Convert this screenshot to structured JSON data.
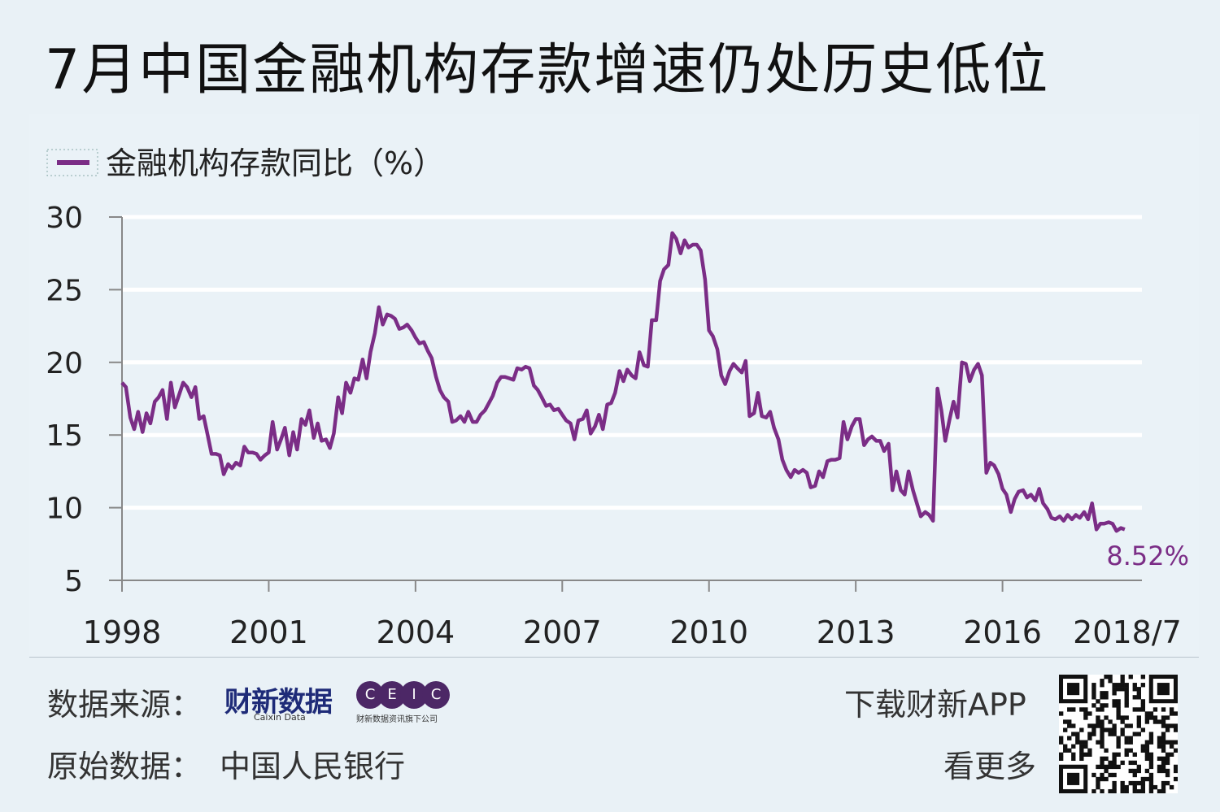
{
  "title": "7月中国金融机构存款增速仍处历史低位",
  "footer": {
    "source_label": "数据来源：",
    "source_logo_caixin": "财新数据",
    "source_logo_caixin_en": "Caixin Data",
    "source_logo_ceic": [
      "C",
      "E",
      "I",
      "C"
    ],
    "source_logo_ceic_sub": "财新数据资讯旗下公司",
    "original_label": "原始数据：",
    "original_value": "中国人民银行",
    "app_line1": "下载财新APP",
    "app_line2": "看更多",
    "qr_icon": "qr-code-icon"
  },
  "colors": {
    "background": "#e9f1f6",
    "series": "#7b2d86",
    "grid": "#ffffff",
    "axis": "#888888"
  },
  "chart_data": {
    "type": "line",
    "title": "",
    "xlabel": "",
    "ylabel": "",
    "ylim": [
      5,
      30
    ],
    "xlim": [
      1998,
      2018.85
    ],
    "yticks": [
      30,
      25,
      20,
      15,
      10,
      5
    ],
    "xticks": [
      {
        "label": "1998",
        "x": 1998
      },
      {
        "label": "2001",
        "x": 2001
      },
      {
        "label": "2004",
        "x": 2004
      },
      {
        "label": "2007",
        "x": 2007
      },
      {
        "label": "2010",
        "x": 2010
      },
      {
        "label": "2013",
        "x": 2013
      },
      {
        "label": "2016",
        "x": 2016
      },
      {
        "label": "2018/7",
        "x": 2018.55
      }
    ],
    "grid": true,
    "legend": "top-left",
    "end_label": "8.52%",
    "series": [
      {
        "name": "金融机构存款同比（%）",
        "color": "#7b2d86",
        "points": [
          [
            1998.0,
            18.6
          ],
          [
            1998.08,
            18.3
          ],
          [
            1998.17,
            16.2
          ],
          [
            1998.25,
            15.4
          ],
          [
            1998.33,
            16.6
          ],
          [
            1998.42,
            15.2
          ],
          [
            1998.5,
            16.5
          ],
          [
            1998.58,
            15.8
          ],
          [
            1998.67,
            17.3
          ],
          [
            1998.75,
            17.6
          ],
          [
            1998.83,
            18.1
          ],
          [
            1998.92,
            16.1
          ],
          [
            1999.0,
            18.6
          ],
          [
            1999.08,
            16.9
          ],
          [
            1999.17,
            17.8
          ],
          [
            1999.25,
            18.6
          ],
          [
            1999.33,
            18.3
          ],
          [
            1999.42,
            17.6
          ],
          [
            1999.5,
            18.3
          ],
          [
            1999.58,
            16.1
          ],
          [
            1999.67,
            16.3
          ],
          [
            1999.75,
            15.0
          ],
          [
            1999.83,
            13.7
          ],
          [
            1999.92,
            13.7
          ],
          [
            2000.0,
            13.6
          ],
          [
            2000.08,
            12.3
          ],
          [
            2000.17,
            13.0
          ],
          [
            2000.25,
            12.7
          ],
          [
            2000.33,
            13.1
          ],
          [
            2000.42,
            12.9
          ],
          [
            2000.5,
            14.2
          ],
          [
            2000.58,
            13.8
          ],
          [
            2000.67,
            13.8
          ],
          [
            2000.75,
            13.7
          ],
          [
            2000.83,
            13.3
          ],
          [
            2000.92,
            13.6
          ],
          [
            2001.0,
            13.8
          ],
          [
            2001.08,
            15.9
          ],
          [
            2001.17,
            14.0
          ],
          [
            2001.25,
            14.7
          ],
          [
            2001.33,
            15.5
          ],
          [
            2001.42,
            13.6
          ],
          [
            2001.5,
            15.2
          ],
          [
            2001.58,
            14.0
          ],
          [
            2001.67,
            16.1
          ],
          [
            2001.75,
            15.7
          ],
          [
            2001.83,
            16.7
          ],
          [
            2001.92,
            14.8
          ],
          [
            2002.0,
            15.8
          ],
          [
            2002.08,
            14.6
          ],
          [
            2002.17,
            14.7
          ],
          [
            2002.25,
            14.1
          ],
          [
            2002.33,
            15.1
          ],
          [
            2002.42,
            17.6
          ],
          [
            2002.5,
            16.5
          ],
          [
            2002.58,
            18.6
          ],
          [
            2002.67,
            17.9
          ],
          [
            2002.75,
            18.9
          ],
          [
            2002.83,
            18.8
          ],
          [
            2002.92,
            20.2
          ],
          [
            2003.0,
            18.9
          ],
          [
            2003.08,
            20.7
          ],
          [
            2003.17,
            22.0
          ],
          [
            2003.25,
            23.8
          ],
          [
            2003.33,
            22.6
          ],
          [
            2003.42,
            23.3
          ],
          [
            2003.5,
            23.2
          ],
          [
            2003.58,
            23.0
          ],
          [
            2003.67,
            22.3
          ],
          [
            2003.75,
            22.4
          ],
          [
            2003.83,
            22.6
          ],
          [
            2003.92,
            22.2
          ],
          [
            2004.0,
            21.7
          ],
          [
            2004.08,
            21.3
          ],
          [
            2004.17,
            21.4
          ],
          [
            2004.25,
            20.8
          ],
          [
            2004.33,
            20.3
          ],
          [
            2004.42,
            19.0
          ],
          [
            2004.5,
            18.1
          ],
          [
            2004.58,
            17.6
          ],
          [
            2004.67,
            17.3
          ],
          [
            2004.75,
            15.9
          ],
          [
            2004.83,
            16.0
          ],
          [
            2004.92,
            16.3
          ],
          [
            2005.0,
            15.9
          ],
          [
            2005.08,
            16.6
          ],
          [
            2005.17,
            15.9
          ],
          [
            2005.25,
            15.9
          ],
          [
            2005.33,
            16.4
          ],
          [
            2005.42,
            16.7
          ],
          [
            2005.5,
            17.2
          ],
          [
            2005.58,
            17.7
          ],
          [
            2005.67,
            18.6
          ],
          [
            2005.75,
            19.0
          ],
          [
            2005.83,
            19.0
          ],
          [
            2005.92,
            18.9
          ],
          [
            2006.0,
            18.8
          ],
          [
            2006.08,
            19.6
          ],
          [
            2006.17,
            19.5
          ],
          [
            2006.25,
            19.7
          ],
          [
            2006.33,
            19.6
          ],
          [
            2006.42,
            18.4
          ],
          [
            2006.5,
            18.1
          ],
          [
            2006.58,
            17.6
          ],
          [
            2006.67,
            17.0
          ],
          [
            2006.75,
            17.1
          ],
          [
            2006.83,
            16.7
          ],
          [
            2006.92,
            16.8
          ],
          [
            2007.0,
            16.4
          ],
          [
            2007.08,
            16.0
          ],
          [
            2007.17,
            15.8
          ],
          [
            2007.25,
            14.7
          ],
          [
            2007.33,
            16.0
          ],
          [
            2007.42,
            16.1
          ],
          [
            2007.5,
            16.7
          ],
          [
            2007.58,
            15.1
          ],
          [
            2007.67,
            15.6
          ],
          [
            2007.75,
            16.4
          ],
          [
            2007.83,
            15.4
          ],
          [
            2007.92,
            17.1
          ],
          [
            2008.0,
            17.2
          ],
          [
            2008.08,
            17.9
          ],
          [
            2008.17,
            19.4
          ],
          [
            2008.25,
            18.7
          ],
          [
            2008.33,
            19.5
          ],
          [
            2008.42,
            19.1
          ],
          [
            2008.5,
            18.9
          ],
          [
            2008.58,
            20.7
          ],
          [
            2008.67,
            19.8
          ],
          [
            2008.75,
            19.7
          ],
          [
            2008.83,
            22.9
          ],
          [
            2008.92,
            22.9
          ],
          [
            2009.0,
            25.6
          ],
          [
            2009.08,
            26.4
          ],
          [
            2009.17,
            26.7
          ],
          [
            2009.25,
            28.9
          ],
          [
            2009.33,
            28.5
          ],
          [
            2009.42,
            27.5
          ],
          [
            2009.5,
            28.4
          ],
          [
            2009.58,
            27.9
          ],
          [
            2009.67,
            28.1
          ],
          [
            2009.75,
            28.1
          ],
          [
            2009.83,
            27.7
          ],
          [
            2009.92,
            25.7
          ],
          [
            2010.0,
            22.2
          ],
          [
            2010.08,
            21.8
          ],
          [
            2010.17,
            20.9
          ],
          [
            2010.25,
            19.1
          ],
          [
            2010.33,
            18.5
          ],
          [
            2010.42,
            19.4
          ],
          [
            2010.5,
            19.9
          ],
          [
            2010.58,
            19.6
          ],
          [
            2010.67,
            19.3
          ],
          [
            2010.75,
            20.1
          ],
          [
            2010.83,
            16.3
          ],
          [
            2010.92,
            16.5
          ],
          [
            2011.0,
            17.9
          ],
          [
            2011.08,
            16.3
          ],
          [
            2011.17,
            16.2
          ],
          [
            2011.25,
            16.6
          ],
          [
            2011.33,
            15.5
          ],
          [
            2011.42,
            14.7
          ],
          [
            2011.5,
            13.3
          ],
          [
            2011.58,
            12.6
          ],
          [
            2011.67,
            12.1
          ],
          [
            2011.75,
            12.6
          ],
          [
            2011.83,
            12.4
          ],
          [
            2011.92,
            12.6
          ],
          [
            2012.0,
            12.4
          ],
          [
            2012.08,
            11.4
          ],
          [
            2012.17,
            11.5
          ],
          [
            2012.25,
            12.5
          ],
          [
            2012.33,
            12.1
          ],
          [
            2012.42,
            13.2
          ],
          [
            2012.5,
            13.3
          ],
          [
            2012.58,
            13.3
          ],
          [
            2012.67,
            13.4
          ],
          [
            2012.75,
            15.9
          ],
          [
            2012.83,
            14.7
          ],
          [
            2012.92,
            15.6
          ],
          [
            2013.0,
            16.1
          ],
          [
            2013.08,
            16.1
          ],
          [
            2013.17,
            14.3
          ],
          [
            2013.25,
            14.7
          ],
          [
            2013.33,
            14.9
          ],
          [
            2013.42,
            14.6
          ],
          [
            2013.5,
            14.6
          ],
          [
            2013.58,
            13.9
          ],
          [
            2013.67,
            14.4
          ],
          [
            2013.75,
            11.2
          ],
          [
            2013.83,
            12.5
          ],
          [
            2013.92,
            11.2
          ],
          [
            2014.0,
            10.9
          ],
          [
            2014.08,
            12.5
          ],
          [
            2014.17,
            11.2
          ],
          [
            2014.25,
            10.3
          ],
          [
            2014.33,
            9.4
          ],
          [
            2014.42,
            9.7
          ],
          [
            2014.5,
            9.5
          ],
          [
            2014.58,
            9.1
          ],
          [
            2014.67,
            18.2
          ],
          [
            2014.75,
            16.7
          ],
          [
            2014.83,
            14.6
          ],
          [
            2014.92,
            16.1
          ],
          [
            2015.0,
            17.3
          ],
          [
            2015.08,
            16.2
          ],
          [
            2015.17,
            20.0
          ],
          [
            2015.25,
            19.9
          ],
          [
            2015.33,
            18.7
          ],
          [
            2015.42,
            19.5
          ],
          [
            2015.5,
            19.9
          ],
          [
            2015.58,
            19.1
          ],
          [
            2015.67,
            12.4
          ],
          [
            2015.75,
            13.1
          ],
          [
            2015.83,
            12.9
          ],
          [
            2015.92,
            12.3
          ],
          [
            2016.0,
            11.3
          ],
          [
            2016.08,
            10.9
          ],
          [
            2016.17,
            9.7
          ],
          [
            2016.25,
            10.6
          ],
          [
            2016.33,
            11.1
          ],
          [
            2016.42,
            11.2
          ],
          [
            2016.5,
            10.7
          ],
          [
            2016.58,
            10.9
          ],
          [
            2016.67,
            10.5
          ],
          [
            2016.75,
            11.3
          ],
          [
            2016.83,
            10.3
          ],
          [
            2016.92,
            9.9
          ],
          [
            2017.0,
            9.3
          ],
          [
            2017.08,
            9.2
          ],
          [
            2017.17,
            9.4
          ],
          [
            2017.25,
            9.1
          ],
          [
            2017.33,
            9.5
          ],
          [
            2017.42,
            9.2
          ],
          [
            2017.5,
            9.5
          ],
          [
            2017.58,
            9.3
          ],
          [
            2017.67,
            9.7
          ],
          [
            2017.75,
            9.2
          ],
          [
            2017.83,
            10.3
          ],
          [
            2017.92,
            8.5
          ],
          [
            2018.0,
            8.9
          ],
          [
            2018.08,
            8.9
          ],
          [
            2018.17,
            9.0
          ],
          [
            2018.25,
            8.9
          ],
          [
            2018.33,
            8.4
          ],
          [
            2018.42,
            8.6
          ],
          [
            2018.5,
            8.5
          ]
        ]
      }
    ]
  }
}
